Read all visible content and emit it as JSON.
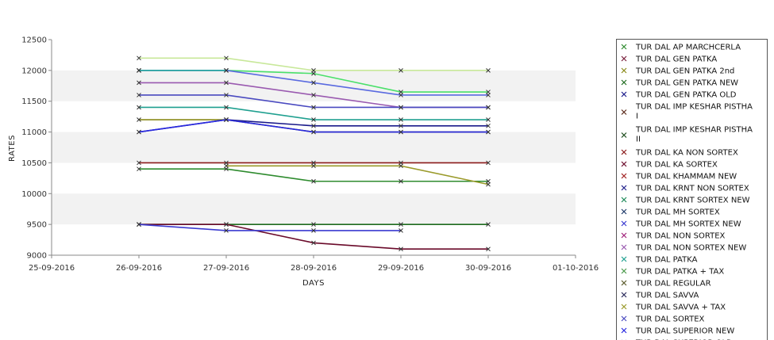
{
  "chart_data": {
    "type": "line",
    "title": "",
    "xlabel": "DAYS",
    "ylabel": "RATES",
    "x_ticks": [
      "25-09-2016",
      "26-09-2016",
      "27-09-2016",
      "28-09-2016",
      "29-09-2016",
      "30-09-2016",
      "01-10-2016"
    ],
    "ylim": [
      9000,
      12500
    ],
    "y_ticks": [
      "9000",
      "9500",
      "10000",
      "10500",
      "11000",
      "11500",
      "12000",
      "12500"
    ],
    "grid": "alternating horizontal bands",
    "legend_position": "right",
    "series": [
      {
        "name": "TUR DAL AP MARCHCERLA",
        "color": "#2e8b2e",
        "values": [
          10400,
          10400,
          10200,
          10200,
          10200
        ]
      },
      {
        "name": "TUR DAL GEN PATKA",
        "color": "#7a1f3d",
        "values": [
          null,
          null,
          null,
          null,
          null
        ]
      },
      {
        "name": "TUR DAL GEN PATKA 2nd",
        "color": "#8a8a1a",
        "values": [
          11200,
          11200,
          null,
          null,
          null
        ]
      },
      {
        "name": "TUR DAL GEN PATKA NEW",
        "color": "#1f6b1f",
        "values": [
          9500,
          9500,
          9500,
          9500,
          9500
        ]
      },
      {
        "name": "TUR DAL GEN PATKA OLD",
        "color": "#1a1a8a",
        "values": [
          11000,
          11200,
          11100,
          11100,
          11100
        ]
      },
      {
        "name": "TUR DAL IMP KESHAR PISTHA I",
        "color": "#5a2a1a",
        "values": [
          null,
          null,
          null,
          null,
          null
        ]
      },
      {
        "name": "TUR DAL IMP KESHAR PISTHA II",
        "color": "#1a4a1a",
        "values": [
          null,
          null,
          null,
          null,
          null
        ]
      },
      {
        "name": "TUR DAL KA NON SORTEX",
        "color": "#8b1a1a",
        "values": [
          10500,
          10500,
          10500,
          10500,
          10500
        ]
      },
      {
        "name": "TUR DAL KA SORTEX",
        "color": "#6a0a2a",
        "values": [
          9500,
          9500,
          9200,
          9100,
          9100
        ]
      },
      {
        "name": "TUR DAL KHAMMAM NEW",
        "color": "#a02020",
        "values": [
          null,
          null,
          null,
          null,
          null
        ]
      },
      {
        "name": "TUR DAL KRNT NON SORTEX",
        "color": "#20208a",
        "values": [
          null,
          null,
          null,
          null,
          null
        ]
      },
      {
        "name": "TUR DAL KRNT SORTEX NEW",
        "color": "#1f8a5a",
        "values": [
          null,
          null,
          null,
          null,
          null
        ]
      },
      {
        "name": "TUR DAL MH SORTEX",
        "color": "#1f3a6a",
        "values": [
          null,
          null,
          null,
          null,
          null
        ]
      },
      {
        "name": "TUR DAL MH SORTEX NEW",
        "color": "#3a3ad0",
        "values": [
          9500,
          9400,
          9400,
          9400,
          null
        ]
      },
      {
        "name": "TUR DAL NON SORTEX",
        "color": "#a0207a",
        "values": [
          null,
          null,
          null,
          null,
          null
        ]
      },
      {
        "name": "TUR DAL NON SORTEX NEW",
        "color": "#9a5ab0",
        "values": [
          11800,
          11800,
          11600,
          11400,
          11400
        ]
      },
      {
        "name": "TUR DAL PATKA",
        "color": "#20a090",
        "values": [
          11400,
          11400,
          11200,
          11200,
          11200
        ]
      },
      {
        "name": "TUR DAL PATKA + TAX",
        "color": "#4a9a4a",
        "values": [
          null,
          null,
          null,
          null,
          null
        ]
      },
      {
        "name": "TUR DAL REGULAR",
        "color": "#5a5a2a",
        "values": [
          null,
          11200,
          11000,
          11000,
          11000
        ]
      },
      {
        "name": "TUR DAL SAVVA",
        "color": "#2a2a5a",
        "values": [
          null,
          null,
          null,
          null,
          null
        ]
      },
      {
        "name": "TUR DAL SAVVA + TAX",
        "color": "#9a9a2a",
        "values": [
          null,
          10450,
          10450,
          10450,
          10150
        ]
      },
      {
        "name": "TUR DAL SORTEX",
        "color": "#4a4ac0",
        "values": [
          11600,
          11600,
          11400,
          11400,
          11400
        ]
      },
      {
        "name": "TUR DAL SUPERIOR NEW",
        "color": "#2a2ae0",
        "values": [
          11000,
          11200,
          11000,
          11000,
          11000
        ]
      },
      {
        "name": "TUR DAL SUPERIOR OLD",
        "color": "#3a3aa0",
        "values": [
          null,
          null,
          null,
          null,
          null
        ]
      }
    ],
    "extra_lines": [
      {
        "color": "#c8e89a",
        "values": [
          12200,
          12200,
          12000,
          12000,
          12000
        ]
      },
      {
        "color": "#4ae06a",
        "values": [
          12000,
          12000,
          11950,
          11650,
          11650
        ]
      },
      {
        "color": "#5a6ae0",
        "values": [
          12000,
          12000,
          11800,
          11600,
          11600
        ]
      },
      {
        "color": "#20a0a0",
        "values": [
          12000,
          12000,
          null,
          null,
          null
        ]
      }
    ]
  }
}
